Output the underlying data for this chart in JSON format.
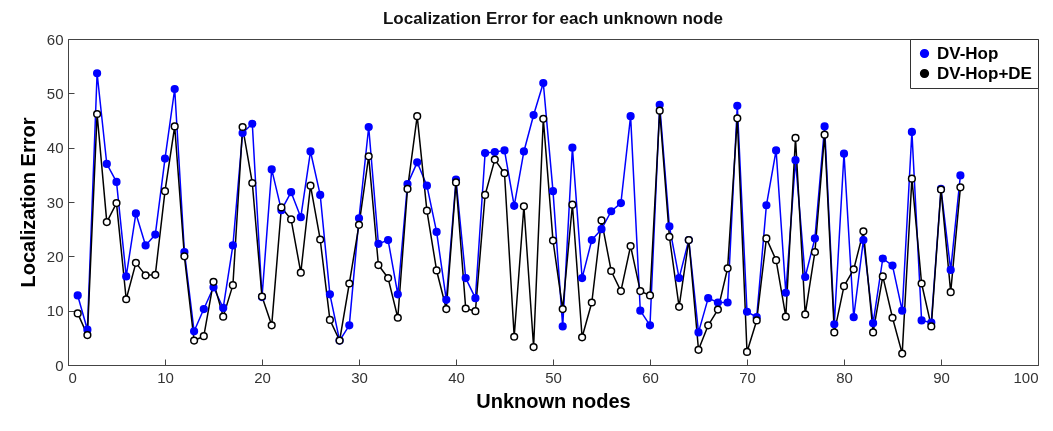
{
  "chart_data": {
    "type": "line",
    "title": "Localization Error for each unknown node",
    "xlabel": "Unknown nodes",
    "ylabel": "Localization Error",
    "x": [
      1,
      2,
      3,
      4,
      5,
      6,
      7,
      8,
      9,
      10,
      11,
      12,
      13,
      14,
      15,
      16,
      17,
      18,
      19,
      20,
      21,
      22,
      23,
      24,
      25,
      26,
      27,
      28,
      29,
      30,
      31,
      32,
      33,
      34,
      35,
      36,
      37,
      38,
      39,
      40,
      41,
      42,
      43,
      44,
      45,
      46,
      47,
      48,
      49,
      50,
      51,
      52,
      53,
      54,
      55,
      56,
      57,
      58,
      59,
      60,
      61,
      62,
      63,
      64,
      65,
      66,
      67,
      68,
      69,
      70,
      71,
      72,
      73,
      74,
      75,
      76,
      77,
      78,
      79,
      80,
      81,
      82,
      83,
      84,
      85,
      86,
      87,
      88,
      89,
      90,
      91,
      92
    ],
    "series": [
      {
        "name": "DV-Hop",
        "color": "#0000ff",
        "values": [
          12.8,
          6.5,
          53.7,
          37,
          33.7,
          16.3,
          27.9,
          22,
          24,
          38,
          50.8,
          20.8,
          6.2,
          10.3,
          14.3,
          10.5,
          22,
          42.7,
          44.4,
          12.5,
          36,
          28.5,
          31.8,
          27.2,
          39.3,
          31.3,
          13,
          4.5,
          7.3,
          27,
          43.8,
          22.3,
          23,
          13,
          33.3,
          37.3,
          33,
          24.5,
          12,
          34.1,
          16,
          12.3,
          39,
          39.2,
          39.5,
          29.3,
          39.3,
          46,
          51.9,
          32,
          7.1,
          40,
          16,
          23,
          25,
          28.3,
          29.8,
          45.8,
          10,
          7.3,
          47.9,
          25.5,
          16,
          23,
          6,
          12.3,
          11.5,
          11.5,
          47.7,
          9.8,
          8.8,
          29.4,
          39.5,
          13.3,
          37.7,
          16.2,
          23.3,
          43.9,
          7.5,
          38.9,
          8.8,
          23,
          7.7,
          19.6,
          18.3,
          10,
          42.9,
          8.2,
          7.8,
          32.4,
          17.5,
          34.9
        ]
      },
      {
        "name": "DV-Hop+DE",
        "color": "#000000",
        "values": [
          9.5,
          5.5,
          46.2,
          26.3,
          29.8,
          12.1,
          18.8,
          16.5,
          16.6,
          32,
          43.9,
          20,
          4.5,
          5.3,
          15.3,
          8.9,
          14.7,
          43.8,
          33.5,
          12.6,
          7.3,
          29,
          26.8,
          17,
          33,
          23.1,
          8.3,
          4.5,
          15,
          25.8,
          38.4,
          18.4,
          16,
          8.7,
          32.4,
          45.8,
          28.4,
          17.4,
          10.3,
          33.6,
          10.4,
          9.9,
          31.3,
          37.8,
          35.3,
          5.2,
          29.2,
          3.3,
          45.3,
          22.9,
          10.3,
          29.5,
          5.1,
          11.5,
          26.6,
          17.3,
          13.6,
          21.9,
          13.6,
          12.8,
          46.8,
          23.6,
          10.7,
          23,
          2.8,
          7.3,
          10.2,
          17.8,
          45.4,
          2.4,
          8.2,
          23.3,
          19.3,
          8.9,
          41.8,
          9.3,
          20.8,
          42.4,
          6,
          14.5,
          17.6,
          24.6,
          6,
          16.3,
          8.7,
          2.1,
          34.3,
          15,
          7.1,
          32.3,
          13.4,
          32.7
        ]
      }
    ],
    "xlim": [
      0,
      100
    ],
    "xticks": [
      0,
      10,
      20,
      30,
      40,
      50,
      60,
      70,
      80,
      90,
      100
    ],
    "ylim": [
      0,
      60
    ],
    "yticks": [
      0,
      10,
      20,
      30,
      40,
      50,
      60
    ],
    "grid": false,
    "legend": "top right",
    "marker": "circle",
    "line_style": "solid"
  }
}
